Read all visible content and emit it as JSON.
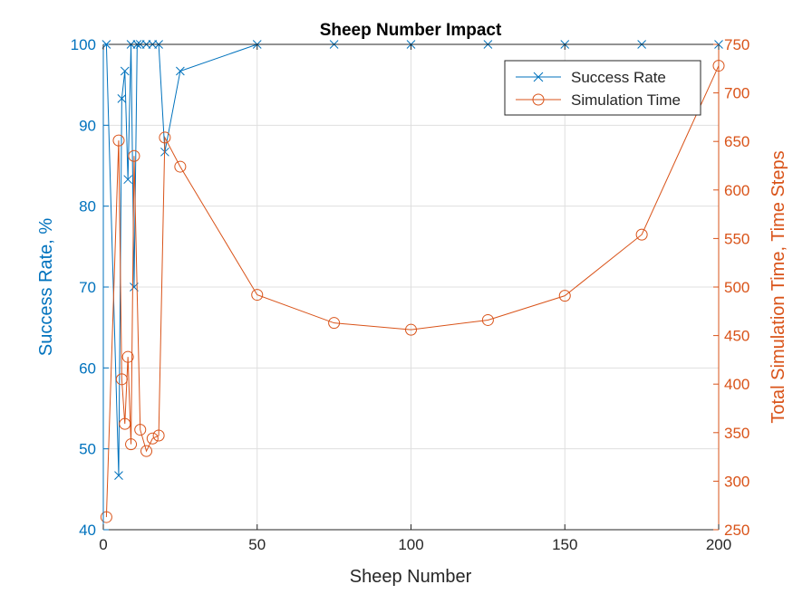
{
  "chart_data": {
    "type": "line",
    "title": "Sheep Number Impact",
    "xlabel": "Sheep Number",
    "ylabel_left": "Success Rate, %",
    "ylabel_right": "Total Simulation Time, Time Steps",
    "xlim": [
      0,
      200
    ],
    "ylim_left": [
      40,
      100
    ],
    "ylim_right": [
      250,
      750
    ],
    "x_ticks": [
      0,
      50,
      100,
      150,
      200
    ],
    "y_ticks_left": [
      40,
      50,
      60,
      70,
      80,
      90,
      100
    ],
    "y_ticks_right": [
      250,
      300,
      350,
      400,
      450,
      500,
      550,
      600,
      650,
      700,
      750
    ],
    "grid": true,
    "legend_position": "top-right",
    "colors": {
      "left": "#0072BD",
      "right": "#D95319",
      "axes": "#262626",
      "grid": "#DFDFDF"
    },
    "series": [
      {
        "name": "Success Rate",
        "axis": "left",
        "marker": "x",
        "x": [
          1,
          5,
          6,
          7,
          8,
          9,
          10,
          11,
          12,
          14,
          16,
          18,
          20,
          25,
          50,
          75,
          100,
          125,
          150,
          175,
          200
        ],
        "y": [
          100,
          46.7,
          93.3,
          96.7,
          83.3,
          100,
          70,
          100,
          100,
          100,
          100,
          100,
          86.7,
          96.7,
          100,
          100,
          100,
          100,
          100,
          100,
          100
        ]
      },
      {
        "name": "Simulation Time",
        "axis": "right",
        "marker": "o",
        "x": [
          1,
          5,
          6,
          7,
          8,
          9,
          10,
          12,
          14,
          16,
          18,
          20,
          25,
          50,
          75,
          100,
          125,
          150,
          175,
          200
        ],
        "y": [
          263,
          651,
          405,
          359,
          428,
          338,
          635,
          353,
          331,
          344,
          347,
          654,
          624,
          492,
          463,
          456,
          466,
          491,
          554,
          728
        ]
      }
    ]
  }
}
